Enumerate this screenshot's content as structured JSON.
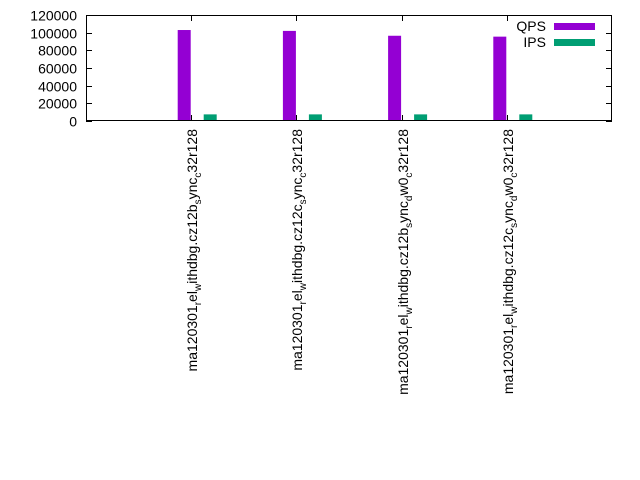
{
  "chart_data": {
    "type": "bar",
    "title": "",
    "xlabel": "",
    "ylabel": "",
    "ylim": [
      0,
      120000
    ],
    "yticks": [
      0,
      20000,
      40000,
      60000,
      80000,
      100000,
      120000
    ],
    "grid": false,
    "legend_position": "top-right",
    "categories": [
      {
        "base": "ma120301",
        "parts": [
          [
            "r",
            "sub"
          ],
          [
            "el",
            "base"
          ],
          [
            "w",
            "sub"
          ],
          [
            "ithdbg.cz12b",
            "base"
          ],
          [
            "s",
            "sub"
          ],
          [
            "ync",
            "base"
          ],
          [
            "c",
            "sub"
          ],
          [
            "32r128",
            "base"
          ]
        ]
      },
      {
        "base": "ma120301",
        "parts": [
          [
            "r",
            "sub"
          ],
          [
            "el",
            "base"
          ],
          [
            "w",
            "sub"
          ],
          [
            "ithdbg.cz12c",
            "base"
          ],
          [
            "s",
            "sub"
          ],
          [
            "ync",
            "base"
          ],
          [
            "c",
            "sub"
          ],
          [
            "32r128",
            "base"
          ]
        ]
      },
      {
        "base": "ma120301",
        "parts": [
          [
            "r",
            "sub"
          ],
          [
            "el",
            "base"
          ],
          [
            "w",
            "sub"
          ],
          [
            "ithdbg.cz12b",
            "base"
          ],
          [
            "s",
            "sub"
          ],
          [
            "ync",
            "base"
          ],
          [
            "d",
            "sub"
          ],
          [
            "w0",
            "base"
          ],
          [
            "c",
            "sub"
          ],
          [
            "32r128",
            "base"
          ]
        ]
      },
      {
        "base": "ma120301",
        "parts": [
          [
            "r",
            "sub"
          ],
          [
            "el",
            "base"
          ],
          [
            "w",
            "sub"
          ],
          [
            "ithdbg.cz12c",
            "base"
          ],
          [
            "s",
            "sub"
          ],
          [
            "ync",
            "base"
          ],
          [
            "d",
            "sub"
          ],
          [
            "w0",
            "base"
          ],
          [
            "c",
            "sub"
          ],
          [
            "32r128",
            "base"
          ]
        ]
      }
    ],
    "series": [
      {
        "name": "QPS",
        "color": "#9400d3",
        "values": [
          103000,
          102000,
          96500,
          95500
        ]
      },
      {
        "name": "IPS",
        "color": "#009e73",
        "values": [
          7500,
          7500,
          7500,
          7500
        ]
      }
    ]
  }
}
